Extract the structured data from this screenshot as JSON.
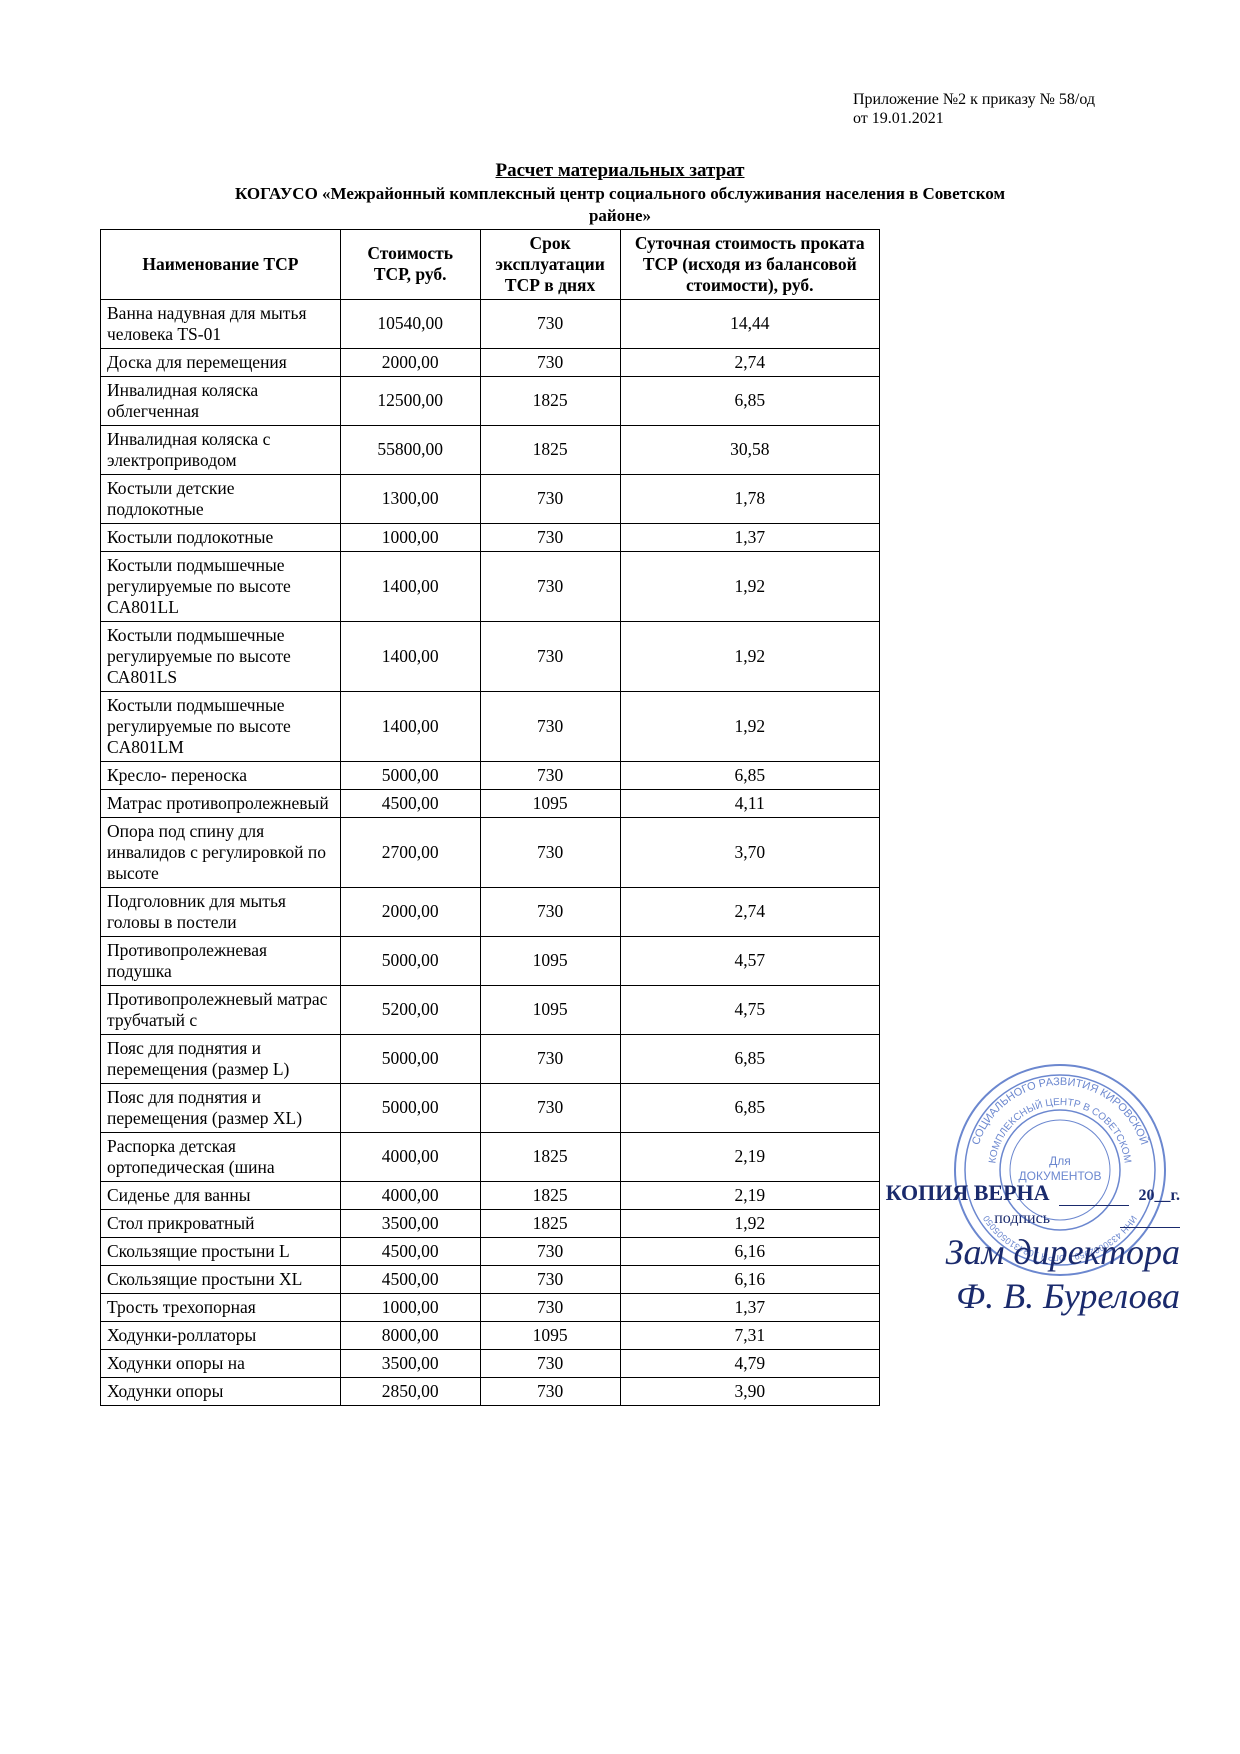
{
  "header": {
    "line1": "Приложение №2 к приказу № 58/од",
    "line2": "от 19.01.2021"
  },
  "title": {
    "main": "Расчет  материальных затрат",
    "sub1": "КОГАУСО «Межрайонный комплексный центр социального обслуживания населения в Советском",
    "sub2": "районе»"
  },
  "table": {
    "columns": [
      "Наименование ТСР",
      "Стоимость ТСР, руб.",
      "Срок эксплуатации ТСР в днях",
      "Суточная стоимость проката ТСР (исходя из балансовой стоимости), руб."
    ],
    "rows": [
      [
        "Ванна надувная для мытья человека TS-01",
        "10540,00",
        "730",
        "14,44"
      ],
      [
        "Доска для перемещения",
        "2000,00",
        "730",
        "2,74"
      ],
      [
        "Инвалидная коляска облегченная",
        "12500,00",
        "1825",
        "6,85"
      ],
      [
        "Инвалидная коляска с электроприводом",
        "55800,00",
        "1825",
        "30,58"
      ],
      [
        "Костыли детские подлокотные",
        "1300,00",
        "730",
        "1,78"
      ],
      [
        "Костыли подлокотные",
        "1000,00",
        "730",
        "1,37"
      ],
      [
        "Костыли подмышечные регулируемые по высоте CA801LL",
        "1400,00",
        "730",
        "1,92"
      ],
      [
        "Костыли подмышечные регулируемые по высоте СА801LS",
        "1400,00",
        "730",
        "1,92"
      ],
      [
        "Костыли подмышечные регулируемые по высоте CA801LM",
        "1400,00",
        "730",
        "1,92"
      ],
      [
        "Кресло- переноска",
        "5000,00",
        "730",
        "6,85"
      ],
      [
        "Матрас противопролежневый",
        "4500,00",
        "1095",
        "4,11"
      ],
      [
        "Опора под спину для инвалидов с регулировкой по высоте",
        "2700,00",
        "730",
        "3,70"
      ],
      [
        "Подголовник для мытья головы в постели",
        "2000,00",
        "730",
        "2,74"
      ],
      [
        "Противопролежневая подушка",
        "5000,00",
        "1095",
        "4,57"
      ],
      [
        "Противопролежневый матрас трубчатый с",
        "5200,00",
        "1095",
        "4,75"
      ],
      [
        "Пояс для поднятия и перемещения (размер L)",
        "5000,00",
        "730",
        "6,85"
      ],
      [
        "Пояс для поднятия и перемещения (размер XL)",
        "5000,00",
        "730",
        "6,85"
      ],
      [
        "Распорка детская ортопедическая (шина",
        "4000,00",
        "1825",
        "2,19"
      ],
      [
        "Сиденье для ванны",
        "4000,00",
        "1825",
        "2,19"
      ],
      [
        "Стол прикроватный",
        "3500,00",
        "1825",
        "1,92"
      ],
      [
        "Скользящие простыни L",
        "4500,00",
        "730",
        "6,16"
      ],
      [
        "Скользящие простыни XL",
        "4500,00",
        "730",
        "6,16"
      ],
      [
        "Трость трехопорная",
        "1000,00",
        "730",
        "1,37"
      ],
      [
        "Ходунки-роллаторы",
        "8000,00",
        "1095",
        "7,31"
      ],
      [
        "Ходунки опоры на",
        "3500,00",
        "730",
        "4,79"
      ],
      [
        "Ходунки опоры",
        "2850,00",
        "730",
        "3,90"
      ]
    ]
  },
  "stamp": {
    "outer_text_top": "ОГО РАЗВИТИЯ",
    "outer_text_bottom": "КИРОВСКОЙ",
    "inner_text1": "КОМПЛЕКСНЫЙ",
    "inner_text2": "ЦЕНТР",
    "center_text": "Для ДОКУМЕНТОВ",
    "color": "#3a5fbf"
  },
  "signature": {
    "verna": "КОПИЯ ВЕРНА",
    "date_suffix": "20__г.",
    "podpis": "подпись",
    "hand1": "Зам директора",
    "hand2": "Ф. В. Бурелова"
  }
}
